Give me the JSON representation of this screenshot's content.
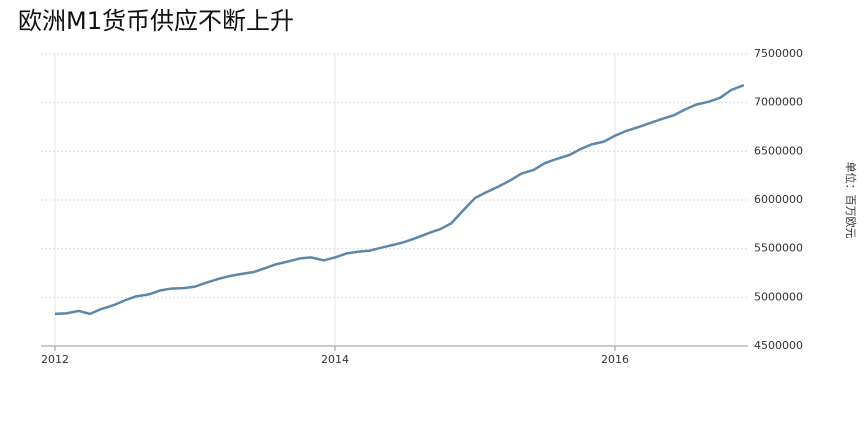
{
  "chart_data": {
    "type": "line",
    "title": "欧洲M1货币供应不断上升",
    "y_label": "单位：百万欧元",
    "x": [
      2012.0,
      2012.08,
      2012.17,
      2012.25,
      2012.33,
      2012.42,
      2012.5,
      2012.58,
      2012.67,
      2012.75,
      2012.83,
      2012.92,
      2013.0,
      2013.08,
      2013.17,
      2013.25,
      2013.33,
      2013.42,
      2013.5,
      2013.58,
      2013.67,
      2013.75,
      2013.83,
      2013.92,
      2014.0,
      2014.08,
      2014.17,
      2014.25,
      2014.33,
      2014.42,
      2014.5,
      2014.58,
      2014.67,
      2014.75,
      2014.83,
      2014.92,
      2015.0,
      2015.08,
      2015.17,
      2015.25,
      2015.33,
      2015.42,
      2015.5,
      2015.58,
      2015.67,
      2015.75,
      2015.83,
      2015.92,
      2016.0,
      2016.08,
      2016.17,
      2016.25,
      2016.33,
      2016.42,
      2016.5,
      2016.58,
      2016.67,
      2016.75,
      2016.83,
      2016.92
    ],
    "series": [
      {
        "name": "M1",
        "color": "#5f87a8",
        "values": [
          4830000,
          4835000,
          4860000,
          4830000,
          4880000,
          4920000,
          4970000,
          5010000,
          5030000,
          5070000,
          5090000,
          5095000,
          5110000,
          5150000,
          5190000,
          5220000,
          5240000,
          5260000,
          5300000,
          5340000,
          5370000,
          5400000,
          5410000,
          5380000,
          5410000,
          5450000,
          5470000,
          5480000,
          5510000,
          5540000,
          5570000,
          5610000,
          5660000,
          5700000,
          5760000,
          5900000,
          6020000,
          6080000,
          6140000,
          6200000,
          6270000,
          6310000,
          6380000,
          6420000,
          6460000,
          6520000,
          6570000,
          6600000,
          6660000,
          6710000,
          6750000,
          6790000,
          6830000,
          6870000,
          6930000,
          6980000,
          7010000,
          7050000,
          7130000,
          7180000
        ]
      }
    ],
    "xlim": [
      2011.9,
      2016.95
    ],
    "xticks": [
      2012,
      2014,
      2016
    ],
    "ylim": [
      4500000,
      7500000
    ],
    "yticks": [
      4500000,
      5000000,
      5500000,
      6000000,
      6500000,
      7000000,
      7500000
    ],
    "grid": true
  }
}
